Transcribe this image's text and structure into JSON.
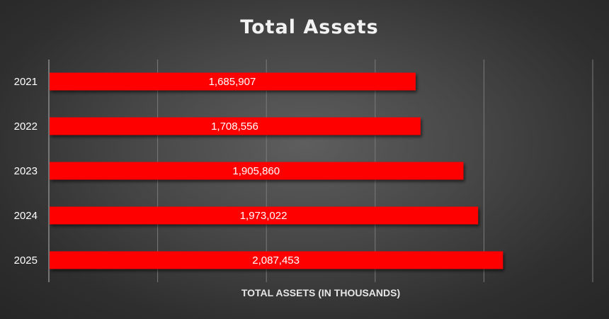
{
  "chart_data": {
    "type": "bar",
    "orientation": "horizontal",
    "title": "Total Assets",
    "xlabel": "TOTAL ASSETS (IN THOUSANDS)",
    "ylabel": "",
    "categories": [
      "2021",
      "2022",
      "2023",
      "2024",
      "2025"
    ],
    "values": [
      1685907,
      1708556,
      1905860,
      1973022,
      2087453
    ],
    "value_labels": [
      "1,685,907",
      "1,708,556",
      "1,905,860",
      "1,973,022",
      "2,087,453"
    ],
    "xlim": [
      0,
      2500000
    ],
    "grid": true,
    "legend": "none",
    "colors": {
      "bar": "#ff0000",
      "background": "#3a3a3a",
      "text": "#ffffff",
      "grid": "#7a7a7a"
    }
  }
}
